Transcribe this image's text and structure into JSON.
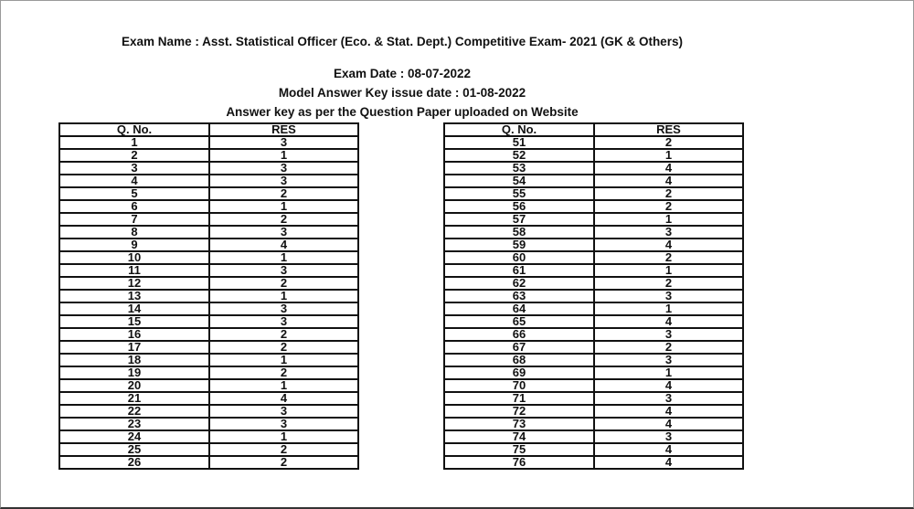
{
  "header": {
    "exam_name": "Exam Name : Asst. Statistical Officer (Eco. & Stat. Dept.) Competitive Exam- 2021 (GK & Others)",
    "exam_date": "Exam Date : 08-07-2022",
    "issue_date": "Model Answer Key issue date : 01-08-2022",
    "note": "Answer key as per the Question Paper uploaded on Website"
  },
  "columns": {
    "qno": "Q. No.",
    "res": "RES"
  },
  "left_table": [
    [
      "1",
      "3"
    ],
    [
      "2",
      "1"
    ],
    [
      "3",
      "3"
    ],
    [
      "4",
      "3"
    ],
    [
      "5",
      "2"
    ],
    [
      "6",
      "1"
    ],
    [
      "7",
      "2"
    ],
    [
      "8",
      "3"
    ],
    [
      "9",
      "4"
    ],
    [
      "10",
      "1"
    ],
    [
      "11",
      "3"
    ],
    [
      "12",
      "2"
    ],
    [
      "13",
      "1"
    ],
    [
      "14",
      "3"
    ],
    [
      "15",
      "3"
    ],
    [
      "16",
      "2"
    ],
    [
      "17",
      "2"
    ],
    [
      "18",
      "1"
    ],
    [
      "19",
      "2"
    ],
    [
      "20",
      "1"
    ],
    [
      "21",
      "4"
    ],
    [
      "22",
      "3"
    ],
    [
      "23",
      "3"
    ],
    [
      "24",
      "1"
    ],
    [
      "25",
      "2"
    ],
    [
      "26",
      "2"
    ]
  ],
  "right_table": [
    [
      "51",
      "2"
    ],
    [
      "52",
      "1"
    ],
    [
      "53",
      "4"
    ],
    [
      "54",
      "4"
    ],
    [
      "55",
      "2"
    ],
    [
      "56",
      "2"
    ],
    [
      "57",
      "1"
    ],
    [
      "58",
      "3"
    ],
    [
      "59",
      "4"
    ],
    [
      "60",
      "2"
    ],
    [
      "61",
      "1"
    ],
    [
      "62",
      "2"
    ],
    [
      "63",
      "3"
    ],
    [
      "64",
      "1"
    ],
    [
      "65",
      "4"
    ],
    [
      "66",
      "3"
    ],
    [
      "67",
      "2"
    ],
    [
      "68",
      "3"
    ],
    [
      "69",
      "1"
    ],
    [
      "70",
      "4"
    ],
    [
      "71",
      "3"
    ],
    [
      "72",
      "4"
    ],
    [
      "73",
      "4"
    ],
    [
      "74",
      "3"
    ],
    [
      "75",
      "4"
    ],
    [
      "76",
      "4"
    ]
  ]
}
